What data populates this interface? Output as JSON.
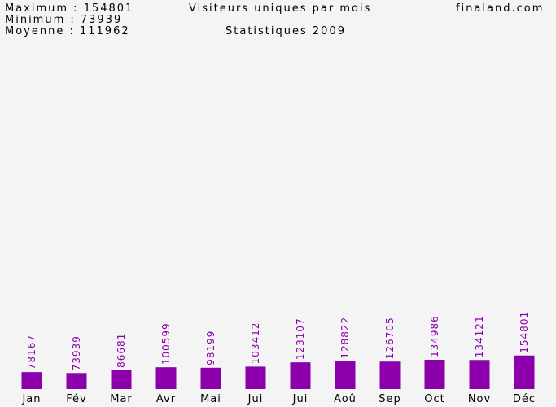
{
  "stats": {
    "max_label": "Maximum : 154801",
    "min_label": "Minimum : 73939",
    "avg_label": "Moyenne : 111962"
  },
  "title": "Visiteurs uniques par mois",
  "subtitle": "Statistiques 2009",
  "site": "finaland.com",
  "colors": {
    "bar": "#8b00aa",
    "value_label": "#8b00aa",
    "background": "#f4f4f4"
  },
  "chart_data": {
    "type": "bar",
    "title": "Visiteurs uniques par mois",
    "subtitle": "Statistiques 2009",
    "categories": [
      "Jan",
      "Fév",
      "Mar",
      "Avr",
      "Mai",
      "Jui",
      "Jui",
      "Aoû",
      "Sep",
      "Oct",
      "Nov",
      "Déc"
    ],
    "values": [
      78167,
      73939,
      86681,
      100599,
      98199,
      103412,
      123107,
      128822,
      126705,
      134986,
      134121,
      154801
    ],
    "ylim": [
      0,
      1500000
    ],
    "grid": false,
    "legend": "none"
  }
}
